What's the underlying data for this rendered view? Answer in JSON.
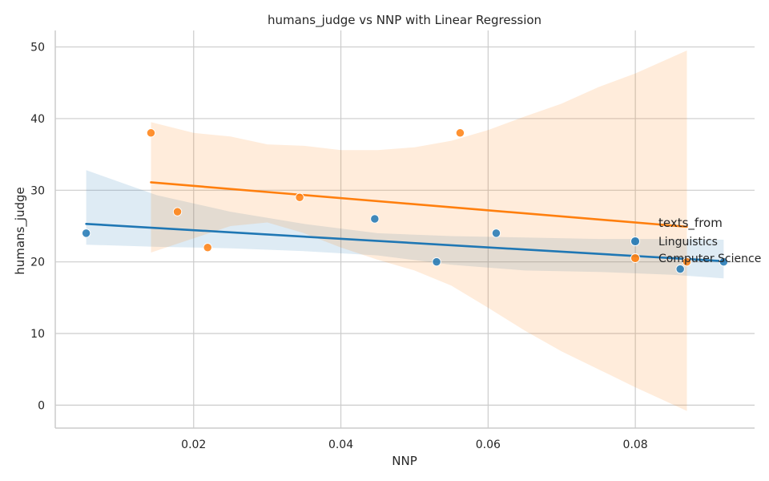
{
  "chart_data": {
    "type": "scatter",
    "title": "humans_judge vs NNP with Linear Regression",
    "xlabel": "NNP",
    "ylabel": "humans_judge",
    "xlim": [
      0.0012,
      0.0962
    ],
    "ylim": [
      -3.2,
      52.3
    ],
    "xticks": [
      0.02,
      0.04,
      0.06,
      0.08
    ],
    "xtick_labels": [
      "0.02",
      "0.04",
      "0.06",
      "0.08"
    ],
    "yticks": [
      0,
      10,
      20,
      30,
      40,
      50
    ],
    "ytick_labels": [
      "0",
      "10",
      "20",
      "30",
      "40",
      "50"
    ],
    "grid": true,
    "legend": {
      "title": "texts_from",
      "placement": "right"
    },
    "series": [
      {
        "name": "Linguistics",
        "color": "#1f77b4",
        "points": [
          {
            "x": 0.0054,
            "y": 24
          },
          {
            "x": 0.0446,
            "y": 26
          },
          {
            "x": 0.053,
            "y": 20
          },
          {
            "x": 0.0611,
            "y": 24
          },
          {
            "x": 0.0861,
            "y": 19
          },
          {
            "x": 0.092,
            "y": 20
          }
        ],
        "regression": {
          "line": [
            [
              0.0054,
              25.3
            ],
            [
              0.092,
              20.1
            ]
          ],
          "band": [
            [
              0.0054,
              22.4,
              32.8
            ],
            [
              0.015,
              22.1,
              29.3
            ],
            [
              0.025,
              21.9,
              27.0
            ],
            [
              0.035,
              21.5,
              25.3
            ],
            [
              0.045,
              20.9,
              24.0
            ],
            [
              0.055,
              19.6,
              23.6
            ],
            [
              0.065,
              18.8,
              23.4
            ],
            [
              0.075,
              18.6,
              23.2
            ],
            [
              0.085,
              18.2,
              23.2
            ],
            [
              0.092,
              17.7,
              23.1
            ]
          ]
        }
      },
      {
        "name": "Computer Science",
        "color": "#ff7f0e",
        "points": [
          {
            "x": 0.0142,
            "y": 38
          },
          {
            "x": 0.0178,
            "y": 27
          },
          {
            "x": 0.0219,
            "y": 22
          },
          {
            "x": 0.0344,
            "y": 29
          },
          {
            "x": 0.0562,
            "y": 38
          },
          {
            "x": 0.087,
            "y": 20
          }
        ],
        "regression": {
          "line": [
            [
              0.0142,
              31.1
            ],
            [
              0.087,
              24.9
            ]
          ],
          "band": [
            [
              0.0142,
              21.3,
              39.5
            ],
            [
              0.02,
              23.3,
              38.0
            ],
            [
              0.025,
              25.0,
              37.5
            ],
            [
              0.03,
              25.5,
              36.4
            ],
            [
              0.035,
              24.0,
              36.2
            ],
            [
              0.04,
              22.0,
              35.6
            ],
            [
              0.045,
              20.3,
              35.6
            ],
            [
              0.05,
              18.8,
              36.0
            ],
            [
              0.055,
              16.7,
              36.9
            ],
            [
              0.06,
              13.6,
              38.4
            ],
            [
              0.065,
              10.4,
              40.3
            ],
            [
              0.07,
              7.5,
              42.1
            ],
            [
              0.075,
              5.0,
              44.4
            ],
            [
              0.08,
              2.5,
              46.3
            ],
            [
              0.087,
              -0.8,
              49.5
            ]
          ]
        }
      }
    ]
  }
}
